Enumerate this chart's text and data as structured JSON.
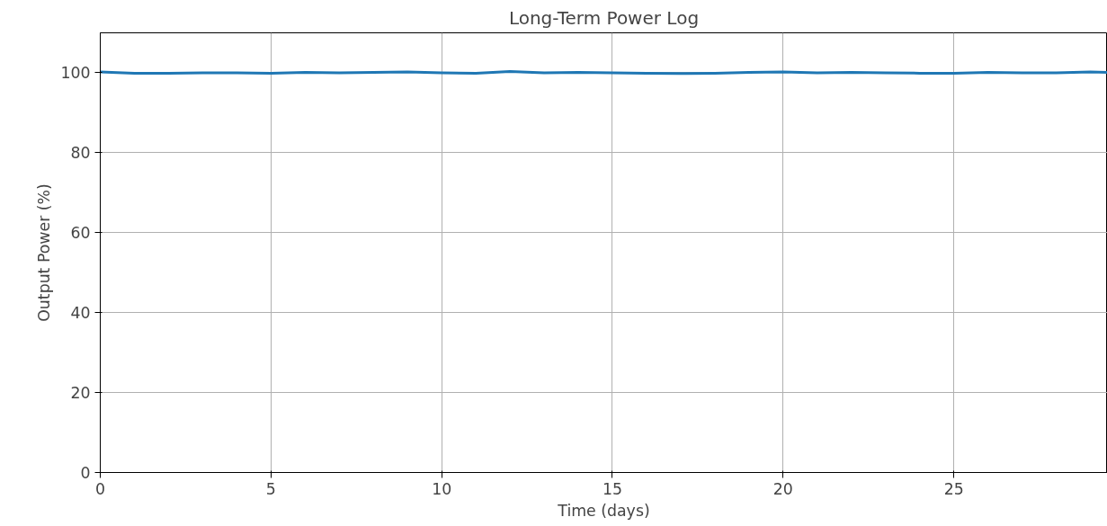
{
  "chart_data": {
    "type": "line",
    "title": "Long-Term Power Log",
    "xlabel": "Time (days)",
    "ylabel": "Output Power (%)",
    "x": [
      0,
      1,
      2,
      3,
      4,
      5,
      6,
      7,
      8,
      9,
      10,
      11,
      12,
      13,
      14,
      15,
      16,
      17,
      18,
      19,
      20,
      21,
      22,
      23,
      24,
      25,
      26,
      27,
      28,
      29,
      29.5
    ],
    "series": [
      {
        "color": "#1f77b4",
        "values": [
          100.2,
          99.9,
          99.9,
          100.0,
          100.0,
          99.9,
          100.1,
          100.0,
          100.1,
          100.2,
          100.0,
          99.9,
          100.3,
          100.0,
          100.1,
          100.0,
          99.9,
          99.8,
          99.9,
          100.1,
          100.2,
          100.0,
          100.1,
          100.0,
          99.9,
          99.9,
          100.1,
          100.0,
          100.0,
          100.2,
          100.1
        ]
      }
    ],
    "xlim": [
      0,
      29.5
    ],
    "ylim": [
      0,
      110
    ],
    "xticks": [
      0,
      5,
      10,
      15,
      20,
      25
    ],
    "yticks": [
      0,
      20,
      40,
      60,
      80,
      100
    ],
    "grid": true,
    "line_style": "solid",
    "marker": "none"
  }
}
